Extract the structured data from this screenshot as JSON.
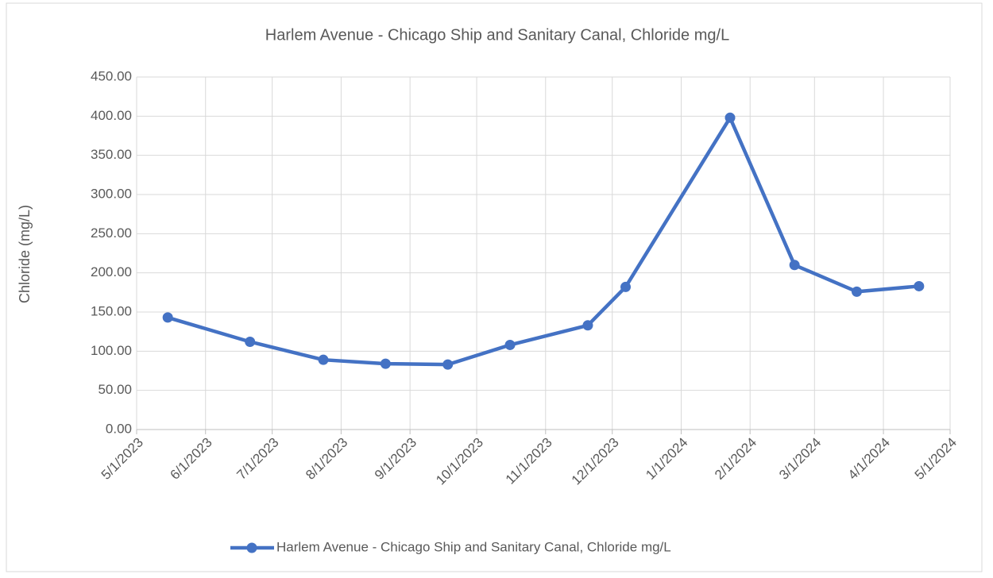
{
  "chart_data": {
    "type": "line",
    "title": "Harlem Avenue - Chicago Ship and Sanitary Canal, Chloride mg/L",
    "ylabel": "Chloride (mg/L)",
    "x": [
      "5/15/2023",
      "6/21/2023",
      "7/24/2023",
      "8/21/2023",
      "9/18/2023",
      "10/16/2023",
      "11/20/2023",
      "12/7/2023",
      "1/23/2024",
      "2/21/2024",
      "3/20/2024",
      "4/17/2024"
    ],
    "series": [
      {
        "name": "Harlem Avenue - Chicago Ship and Sanitary Canal, Chloride mg/L",
        "color": "#4472c4",
        "values": [
          143,
          112,
          89,
          84,
          83,
          108,
          133,
          182,
          398,
          210,
          176,
          183
        ]
      }
    ],
    "xlim": [
      "5/1/2023",
      "5/1/2024"
    ],
    "xticks": [
      "5/1/2023",
      "6/1/2023",
      "7/1/2023",
      "8/1/2023",
      "9/1/2023",
      "10/1/2023",
      "11/1/2023",
      "12/1/2023",
      "1/1/2024",
      "2/1/2024",
      "3/1/2024",
      "4/1/2024",
      "5/1/2024"
    ],
    "ylim": [
      0,
      450
    ],
    "yticks": [
      {
        "value": 0,
        "label": "0.00"
      },
      {
        "value": 50,
        "label": "50.00"
      },
      {
        "value": 100,
        "label": "100.00"
      },
      {
        "value": 150,
        "label": "150.00"
      },
      {
        "value": 200,
        "label": "200.00"
      },
      {
        "value": 250,
        "label": "250.00"
      },
      {
        "value": 300,
        "label": "300.00"
      },
      {
        "value": 350,
        "label": "350.00"
      },
      {
        "value": 400,
        "label": "400.00"
      },
      {
        "value": 450,
        "label": "450.00"
      }
    ],
    "grid": true,
    "legend": "bottom"
  }
}
